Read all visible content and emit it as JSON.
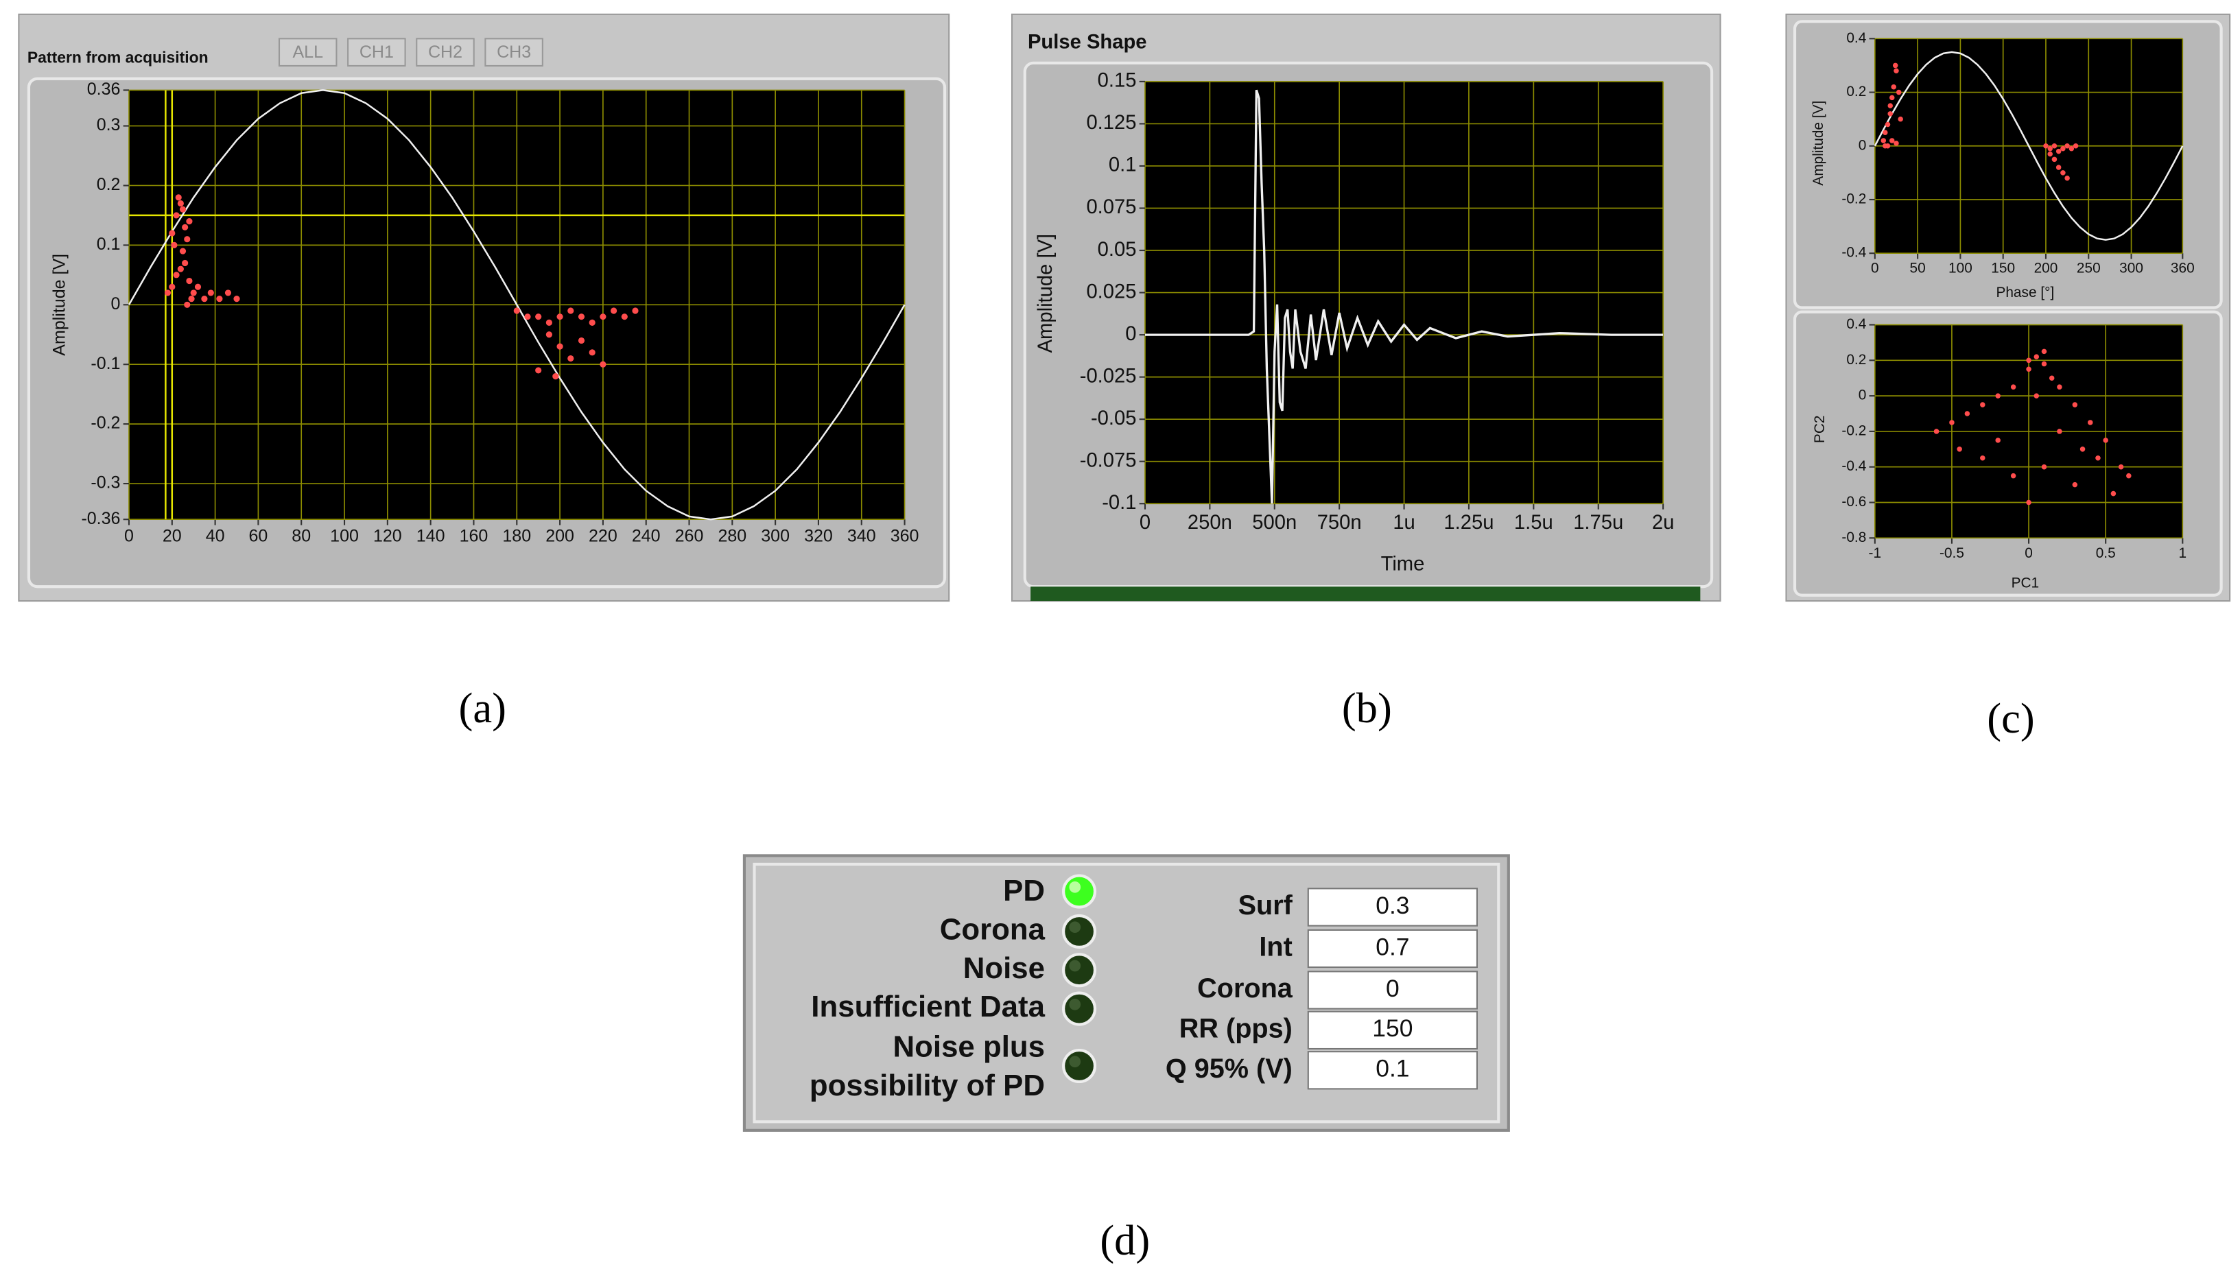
{
  "chart_data": [
    {
      "type": "scatter",
      "title": "Pattern from acquisition",
      "buttons": [
        "ALL",
        "CH1",
        "CH2",
        "CH3"
      ],
      "y_label": "Amplitude [V]",
      "xlim": [
        0,
        360
      ],
      "xticks": [
        0,
        20,
        40,
        60,
        80,
        100,
        120,
        140,
        160,
        180,
        200,
        220,
        240,
        260,
        280,
        300,
        320,
        340,
        360
      ],
      "ylim": [
        -0.36,
        0.36
      ],
      "yticks": [
        -0.36,
        -0.3,
        -0.2,
        -0.1,
        0,
        0.1,
        0.2,
        0.3,
        0.36
      ],
      "grid": true,
      "cursors": {
        "x": [
          17,
          20
        ],
        "y": 0.15
      },
      "series": [
        {
          "type": "line",
          "color": "#f0f0f0",
          "x": [
            0,
            10,
            20,
            30,
            40,
            50,
            60,
            70,
            80,
            90,
            100,
            110,
            120,
            130,
            140,
            150,
            160,
            170,
            180,
            190,
            200,
            210,
            220,
            230,
            240,
            250,
            260,
            270,
            280,
            290,
            300,
            310,
            320,
            330,
            340,
            350,
            360
          ],
          "y": [
            0,
            0.063,
            0.123,
            0.18,
            0.231,
            0.276,
            0.312,
            0.338,
            0.355,
            0.36,
            0.355,
            0.338,
            0.312,
            0.276,
            0.231,
            0.18,
            0.123,
            0.063,
            0,
            -0.063,
            -0.123,
            -0.18,
            -0.231,
            -0.276,
            -0.312,
            -0.338,
            -0.355,
            -0.36,
            -0.355,
            -0.338,
            -0.312,
            -0.276,
            -0.231,
            -0.18,
            -0.123,
            -0.063,
            0
          ]
        },
        {
          "type": "scatter",
          "color": "#ff4d4d",
          "x": [
            20,
            22,
            24,
            25,
            26,
            27,
            28,
            23,
            21,
            25,
            18,
            20,
            22,
            24,
            26,
            28,
            30,
            32,
            35,
            38,
            42,
            46,
            50,
            27,
            29,
            180,
            185,
            190,
            195,
            200,
            205,
            210,
            215,
            220,
            225,
            230,
            235,
            195,
            200,
            205,
            210,
            215,
            220,
            190,
            198
          ],
          "y": [
            0.12,
            0.15,
            0.17,
            0.16,
            0.13,
            0.11,
            0.14,
            0.18,
            0.1,
            0.09,
            0.02,
            0.03,
            0.05,
            0.06,
            0.07,
            0.04,
            0.02,
            0.03,
            0.01,
            0.02,
            0.01,
            0.02,
            0.01,
            0,
            0.01,
            -0.01,
            -0.02,
            -0.02,
            -0.03,
            -0.02,
            -0.01,
            -0.02,
            -0.03,
            -0.02,
            -0.01,
            -0.02,
            -0.01,
            -0.05,
            -0.07,
            -0.09,
            -0.06,
            -0.08,
            -0.1,
            -0.11,
            -0.12
          ]
        }
      ]
    },
    {
      "type": "line",
      "title": "Pulse Shape",
      "x_label": "Time",
      "y_label": "Amplitude [V]",
      "xlim": [
        0,
        2000
      ],
      "xticks": [
        0,
        {
          "value": 250,
          "label": "250n"
        },
        {
          "value": 500,
          "label": "500n"
        },
        {
          "value": 750,
          "label": "750n"
        },
        {
          "value": 1000,
          "label": "1u"
        },
        {
          "value": 1250,
          "label": "1.25u"
        },
        {
          "value": 1500,
          "label": "1.5u"
        },
        {
          "value": 1750,
          "label": "1.75u"
        },
        {
          "value": 2000,
          "label": "2u"
        }
      ],
      "ylim": [
        -0.1,
        0.15
      ],
      "yticks": [
        -0.1,
        -0.075,
        -0.05,
        -0.025,
        0,
        0.025,
        0.05,
        0.075,
        0.1,
        0.125,
        0.15
      ],
      "grid": true,
      "series": [
        {
          "type": "line",
          "color": "#f0f0f0",
          "x": [
            0,
            400,
            420,
            430,
            440,
            450,
            460,
            470,
            480,
            490,
            500,
            510,
            520,
            530,
            540,
            550,
            560,
            570,
            580,
            600,
            620,
            640,
            660,
            690,
            720,
            750,
            780,
            820,
            860,
            900,
            950,
            1000,
            1050,
            1100,
            1200,
            1300,
            1400,
            1600,
            1800,
            2000
          ],
          "y": [
            0,
            0,
            0.002,
            0.145,
            0.14,
            0.09,
            0.05,
            -0.02,
            -0.06,
            -0.1,
            -0.01,
            0.018,
            -0.04,
            -0.045,
            0.01,
            0.015,
            -0.01,
            -0.02,
            0.015,
            -0.01,
            -0.02,
            0.012,
            -0.015,
            0.015,
            -0.012,
            0.013,
            -0.008,
            0.01,
            -0.006,
            0.008,
            -0.004,
            0.006,
            -0.003,
            0.004,
            -0.002,
            0.002,
            -0.001,
            0.001,
            0,
            0
          ]
        }
      ]
    },
    {
      "type": "scatter",
      "x_label": "Phase [°]",
      "y_label": "Amplitude [V]",
      "xlim": [
        0,
        360
      ],
      "xticks": [
        0,
        50,
        100,
        150,
        200,
        250,
        300,
        360
      ],
      "ylim": [
        -0.4,
        0.4
      ],
      "yticks": [
        -0.4,
        -0.2,
        0,
        0.2,
        0.4
      ],
      "grid": true,
      "series": [
        {
          "type": "line",
          "color": "#f0f0f0",
          "x": [
            0,
            10,
            20,
            30,
            40,
            50,
            60,
            70,
            80,
            90,
            100,
            110,
            120,
            130,
            140,
            150,
            160,
            170,
            180,
            190,
            200,
            210,
            220,
            230,
            240,
            250,
            260,
            270,
            280,
            290,
            300,
            310,
            320,
            330,
            340,
            350,
            360
          ],
          "y": [
            0,
            0.061,
            0.12,
            0.175,
            0.225,
            0.268,
            0.303,
            0.329,
            0.345,
            0.35,
            0.345,
            0.329,
            0.303,
            0.268,
            0.225,
            0.175,
            0.12,
            0.061,
            0,
            -0.061,
            -0.12,
            -0.175,
            -0.225,
            -0.268,
            -0.303,
            -0.329,
            -0.345,
            -0.35,
            -0.345,
            -0.329,
            -0.303,
            -0.268,
            -0.225,
            -0.175,
            -0.12,
            -0.061,
            0
          ]
        },
        {
          "type": "scatter",
          "color": "#ff4d4d",
          "x": [
            10,
            12,
            15,
            18,
            20,
            22,
            25,
            28,
            30,
            15,
            20,
            25,
            12,
            18,
            24,
            200,
            205,
            210,
            215,
            220,
            225,
            230,
            235,
            210,
            215,
            220,
            225,
            205
          ],
          "y": [
            0.02,
            0.05,
            0.08,
            0.12,
            0.18,
            0.22,
            0.28,
            0.2,
            0.1,
            0,
            0.02,
            0.01,
            0,
            0.15,
            0.3,
            0,
            -0.01,
            0,
            -0.02,
            -0.01,
            0,
            -0.01,
            0,
            -0.05,
            -0.08,
            -0.1,
            -0.12,
            -0.03
          ]
        }
      ]
    },
    {
      "type": "scatter",
      "x_label": "PC1",
      "y_label": "PC2",
      "xlim": [
        -1,
        1
      ],
      "xticks": [
        -1,
        -0.5,
        0,
        0.5,
        1
      ],
      "ylim": [
        -0.8,
        0.4
      ],
      "yticks": [
        -0.8,
        -0.6,
        -0.4,
        -0.2,
        0,
        0.2,
        0.4
      ],
      "grid": true,
      "series": [
        {
          "type": "scatter",
          "color": "#ff4d4d",
          "x": [
            -0.6,
            -0.5,
            -0.4,
            -0.3,
            -0.2,
            -0.1,
            0,
            0.05,
            0.1,
            0.15,
            0.2,
            0.3,
            0.4,
            0.5,
            0.6,
            -0.45,
            -0.3,
            -0.1,
            0,
            0.1,
            0.3,
            0.45,
            0.55,
            0.65,
            0.05,
            0.1,
            0,
            -0.2,
            0.2,
            0.35
          ],
          "y": [
            -0.2,
            -0.15,
            -0.1,
            -0.05,
            0,
            0.05,
            0.15,
            0.22,
            0.25,
            0.1,
            0.05,
            -0.05,
            -0.15,
            -0.25,
            -0.4,
            -0.3,
            -0.35,
            -0.45,
            -0.6,
            -0.4,
            -0.5,
            -0.35,
            -0.55,
            -0.45,
            0,
            0.18,
            0.2,
            -0.25,
            -0.2,
            -0.3
          ]
        }
      ]
    }
  ],
  "status": {
    "indicators": [
      {
        "label": [
          "PD"
        ],
        "on": true
      },
      {
        "label": [
          "Corona"
        ],
        "on": false
      },
      {
        "label": [
          "Noise"
        ],
        "on": false
      },
      {
        "label": [
          "Insufficient Data"
        ],
        "on": false
      },
      {
        "label": [
          "Noise plus",
          "possibility of PD"
        ],
        "on": false
      }
    ],
    "fields": [
      {
        "label": "Surf",
        "value": "0.3"
      },
      {
        "label": "Int",
        "value": "0.7"
      },
      {
        "label": "Corona",
        "value": "0"
      },
      {
        "label": "RR (pps)",
        "value": "150"
      },
      {
        "label": "Q 95% (V)",
        "value": "0.1"
      }
    ]
  },
  "captions": [
    "(a)",
    "(b)",
    "(c)",
    "(d)"
  ]
}
